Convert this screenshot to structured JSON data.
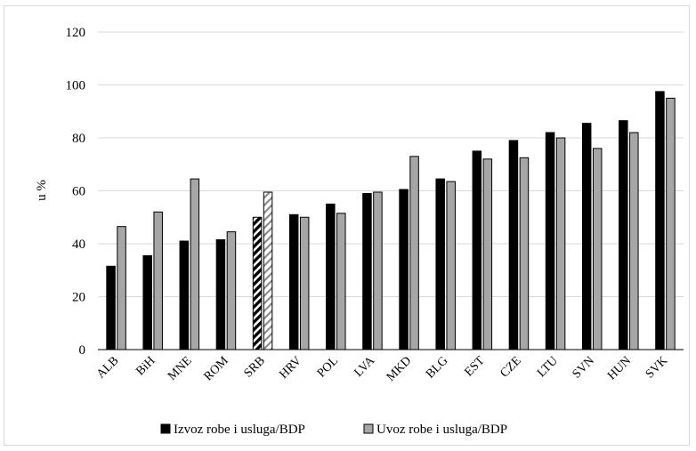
{
  "chart_data": {
    "type": "bar",
    "title": "",
    "xlabel": "",
    "ylabel": "u %",
    "ylim": [
      0,
      120
    ],
    "yticks": [
      0,
      20,
      40,
      60,
      80,
      100,
      120
    ],
    "grid": true,
    "legend_position": "bottom",
    "categories": [
      "ALB",
      "BiH",
      "MNE",
      "ROM",
      "SRB",
      "HRV",
      "POL",
      "LVA",
      "MKD",
      "BLG",
      "EST",
      "CZE",
      "LTU",
      "SVN",
      "HUN",
      "SVK"
    ],
    "highlight_category": "SRB",
    "series": [
      {
        "name": "Izvoz robe i usluga/BDP",
        "color": "#000000",
        "values": [
          31.5,
          35.5,
          41,
          41.5,
          50,
          51,
          55,
          59,
          60.5,
          64.5,
          75,
          79,
          82,
          85.5,
          86.5,
          97.5
        ]
      },
      {
        "name": "Uvoz robe i usluga/BDP",
        "color": "#a6a6a6",
        "values": [
          46.5,
          52,
          64.5,
          44.5,
          59.5,
          50,
          51.5,
          59.5,
          73,
          63.5,
          72,
          72.5,
          80,
          76,
          82,
          95
        ]
      }
    ]
  }
}
